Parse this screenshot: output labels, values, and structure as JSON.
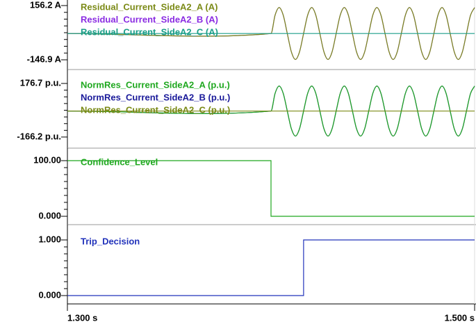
{
  "chart_data": [
    {
      "type": "line",
      "x": [
        1.3,
        1.4,
        1.402,
        1.404,
        1.406,
        1.408,
        1.41,
        1.412,
        1.414,
        1.416,
        1.418,
        1.42,
        1.422,
        1.424,
        1.426,
        1.428,
        1.43,
        1.432,
        1.434,
        1.436,
        1.438,
        1.44,
        1.442,
        1.444,
        1.446,
        1.448,
        1.45,
        1.452,
        1.454,
        1.456,
        1.458,
        1.46,
        1.462,
        1.464,
        1.466,
        1.468,
        1.47,
        1.472,
        1.474,
        1.476,
        1.478,
        1.48,
        1.482,
        1.484,
        1.486,
        1.488,
        1.49,
        1.492,
        1.494,
        1.496,
        1.498,
        1.5
      ],
      "series": [
        {
          "name": "Residual_Current_SideA2_A (A)",
          "color": "#7b8a16",
          "values": [
            0,
            0,
            102.5,
            145,
            102.5,
            0,
            -102.5,
            -145,
            -102.5,
            0,
            102.5,
            145,
            102.5,
            0,
            -102.5,
            -145,
            -102.5,
            0,
            102.5,
            145,
            102.5,
            0,
            -102.5,
            -145,
            -102.5,
            0,
            102.5,
            145,
            102.5,
            0,
            -102.5,
            -145,
            -102.5,
            0,
            102.5,
            145,
            102.5,
            0,
            -102.5,
            -145,
            -102.5,
            0,
            102.5,
            145,
            102.5,
            0,
            -102.5,
            -145,
            -102.5,
            0,
            102.5,
            145
          ]
        },
        {
          "name": "Residual_Current_SideA2_B (A)",
          "color": "#8a2be2",
          "values": [
            0,
            0,
            102.5,
            145,
            102.5,
            0,
            -102.5,
            -145,
            -102.5,
            0,
            102.5,
            145,
            102.5,
            0,
            -102.5,
            -145,
            -102.5,
            0,
            102.5,
            145,
            102.5,
            0,
            -102.5,
            -145,
            -102.5,
            0,
            102.5,
            145,
            102.5,
            0,
            -102.5,
            -145,
            -102.5,
            0,
            102.5,
            145,
            102.5,
            0,
            -102.5,
            -145,
            -102.5,
            0,
            102.5,
            145,
            102.5,
            0,
            -102.5,
            -145,
            -102.5,
            0,
            102.5,
            145
          ]
        },
        {
          "name": "Residual_Current_SideA2_C (A)",
          "color": "#1a9e88",
          "values": [
            0,
            0,
            0,
            0,
            0,
            0,
            0,
            0,
            0,
            0,
            0,
            0,
            0,
            0,
            0,
            0,
            0,
            0,
            0,
            0,
            0,
            0,
            0,
            0,
            0,
            0,
            0,
            0,
            0,
            0,
            0,
            0,
            0,
            0,
            0,
            0,
            0,
            0,
            0,
            0,
            0,
            0,
            0,
            0,
            0,
            0,
            0,
            0,
            0,
            0,
            0,
            0
          ]
        }
      ],
      "xlim": [
        1.3,
        1.5
      ],
      "ylim": [
        -146.9,
        156.2
      ],
      "yticks": [
        {
          "value": -146.9,
          "label": "-146.9 A"
        },
        {
          "value": 156.2,
          "label": "156.2 A"
        }
      ]
    },
    {
      "type": "line",
      "x": [
        1.3,
        1.4,
        1.402,
        1.404,
        1.406,
        1.408,
        1.41,
        1.412,
        1.414,
        1.416,
        1.418,
        1.42,
        1.422,
        1.424,
        1.426,
        1.428,
        1.43,
        1.432,
        1.434,
        1.436,
        1.438,
        1.44,
        1.442,
        1.444,
        1.446,
        1.448,
        1.45,
        1.452,
        1.454,
        1.456,
        1.458,
        1.46,
        1.462,
        1.464,
        1.466,
        1.468,
        1.47,
        1.472,
        1.474,
        1.476,
        1.478,
        1.48,
        1.482,
        1.484,
        1.486,
        1.488,
        1.49,
        1.492,
        1.494,
        1.496,
        1.498,
        1.5
      ],
      "series": [
        {
          "name": "NormRes_Current_SideA2_A (p.u.)",
          "color": "#1fa81f",
          "values": [
            0,
            0,
            113.1,
            160,
            113.1,
            0,
            -113.1,
            -160,
            -113.1,
            0,
            113.1,
            160,
            113.1,
            0,
            -113.1,
            -160,
            -113.1,
            0,
            113.1,
            160,
            113.1,
            0,
            -113.1,
            -160,
            -113.1,
            0,
            113.1,
            160,
            113.1,
            0,
            -113.1,
            -160,
            -113.1,
            0,
            113.1,
            160,
            113.1,
            0,
            -113.1,
            -160,
            -113.1,
            0,
            113.1,
            160,
            113.1,
            0,
            -113.1,
            -160,
            -113.1,
            0,
            113.1,
            160
          ]
        },
        {
          "name": "NormRes_Current_SideA2_B (p.u.)",
          "color": "#1a1a9a",
          "values": [
            0,
            0,
            113.1,
            160,
            113.1,
            0,
            -113.1,
            -160,
            -113.1,
            0,
            113.1,
            160,
            113.1,
            0,
            -113.1,
            -160,
            -113.1,
            0,
            113.1,
            160,
            113.1,
            0,
            -113.1,
            -160,
            -113.1,
            0,
            113.1,
            160,
            113.1,
            0,
            -113.1,
            -160,
            -113.1,
            0,
            113.1,
            160,
            113.1,
            0,
            -113.1,
            -160,
            -113.1,
            0,
            113.1,
            160,
            113.1,
            0,
            -113.1,
            -160,
            -113.1,
            0,
            113.1,
            160
          ]
        },
        {
          "name": "NormRes_Current_SideA2_C (p.u.)",
          "color": "#7b8a16",
          "values": [
            0,
            0,
            0,
            0,
            0,
            0,
            0,
            0,
            0,
            0,
            0,
            0,
            0,
            0,
            0,
            0,
            0,
            0,
            0,
            0,
            0,
            0,
            0,
            0,
            0,
            0,
            0,
            0,
            0,
            0,
            0,
            0,
            0,
            0,
            0,
            0,
            0,
            0,
            0,
            0,
            0,
            0,
            0,
            0,
            0,
            0,
            0,
            0,
            0,
            0,
            0,
            0
          ]
        }
      ],
      "xlim": [
        1.3,
        1.5
      ],
      "ylim": [
        -166.2,
        176.7
      ],
      "yticks": [
        {
          "value": -166.2,
          "label": "-166.2 p.u."
        },
        {
          "value": 176.7,
          "label": "176.7 p.u."
        }
      ]
    },
    {
      "type": "line",
      "x": [
        1.3,
        1.4,
        1.4,
        1.5
      ],
      "series": [
        {
          "name": "Confidence_Level",
          "color": "#1fa81f",
          "values": [
            100,
            100,
            0,
            0
          ]
        }
      ],
      "xlim": [
        1.3,
        1.5
      ],
      "ylim": [
        0,
        100
      ],
      "yticks": [
        {
          "value": 0,
          "label": "0.000"
        },
        {
          "value": 100,
          "label": "100.00"
        }
      ]
    },
    {
      "type": "line",
      "x": [
        1.3,
        1.416,
        1.416,
        1.5
      ],
      "series": [
        {
          "name": "Trip_Decision",
          "color": "#2233bb",
          "values": [
            0,
            0,
            1,
            1
          ]
        }
      ],
      "xlim": [
        1.3,
        1.5
      ],
      "ylim": [
        0,
        1
      ],
      "yticks": [
        {
          "value": 0,
          "label": "0.000"
        },
        {
          "value": 1,
          "label": "1.000"
        }
      ],
      "xticks": [
        {
          "value": 1.3,
          "label": "1.300 s"
        },
        {
          "value": 1.5,
          "label": "1.500 s"
        }
      ]
    }
  ]
}
